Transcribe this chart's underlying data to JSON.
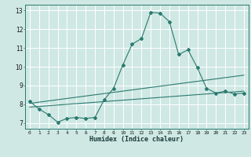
{
  "title": "",
  "xlabel": "Humidex (Indice chaleur)",
  "xlim": [
    -0.5,
    23.5
  ],
  "ylim": [
    6.7,
    13.3
  ],
  "xticks": [
    0,
    1,
    2,
    3,
    4,
    5,
    6,
    7,
    8,
    9,
    10,
    11,
    12,
    13,
    14,
    15,
    16,
    17,
    18,
    19,
    20,
    21,
    22,
    23
  ],
  "yticks": [
    7,
    8,
    9,
    10,
    11,
    12,
    13
  ],
  "background_color": "#cfe8e4",
  "grid_color": "#ffffff",
  "line_color": "#2a7a6f",
  "line1_x": [
    0,
    1,
    2,
    3,
    4,
    5,
    6,
    7,
    8,
    9,
    10,
    11,
    12,
    13,
    14,
    15,
    16,
    17,
    18,
    19,
    20,
    21,
    22,
    23
  ],
  "line1_y": [
    8.15,
    7.75,
    7.45,
    7.05,
    7.25,
    7.3,
    7.25,
    7.3,
    8.25,
    8.85,
    10.1,
    11.2,
    11.5,
    12.9,
    12.85,
    12.4,
    10.65,
    10.9,
    9.95,
    8.85,
    8.6,
    8.7,
    8.55,
    8.6
  ],
  "line2_x": [
    0,
    23
  ],
  "line2_y": [
    8.05,
    9.55
  ],
  "line3_x": [
    0,
    23
  ],
  "line3_y": [
    7.85,
    8.7
  ]
}
